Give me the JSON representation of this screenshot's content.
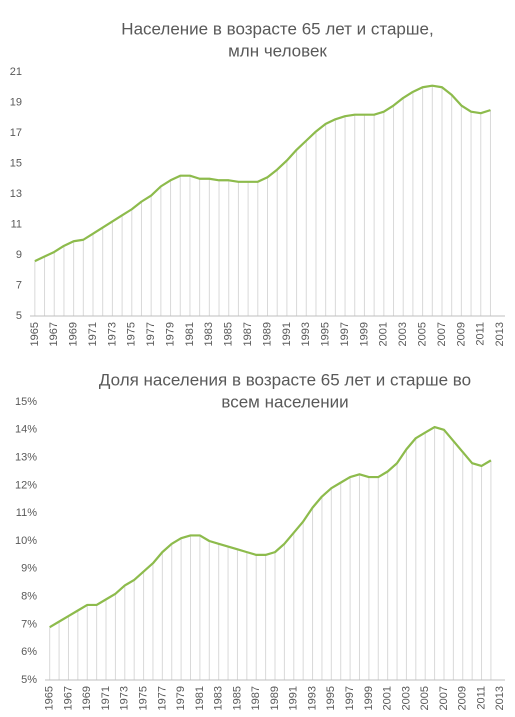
{
  "chart_data": [
    {
      "type": "line",
      "title": [
        "Население в возрасте 65 лет и старше,",
        "млн человек"
      ],
      "categories": [
        "1965",
        null,
        "1967",
        null,
        "1969",
        null,
        "1971",
        null,
        "1973",
        null,
        "1975",
        null,
        "1977",
        null,
        "1979",
        null,
        "1981",
        null,
        "1983",
        null,
        "1985",
        null,
        "1987",
        null,
        "1989",
        null,
        "1991",
        null,
        "1993",
        null,
        "1995",
        null,
        "1997",
        null,
        "1999",
        null,
        "2001",
        null,
        "2003",
        null,
        "2005",
        null,
        "2007",
        null,
        "2009",
        null,
        "2011",
        null,
        "2013"
      ],
      "series": [
        {
          "color": "#8dbb4c",
          "values": [
            8.6,
            8.9,
            9.2,
            9.6,
            9.9,
            10.0,
            10.4,
            10.8,
            11.2,
            11.6,
            12.0,
            12.5,
            12.9,
            13.5,
            13.9,
            14.2,
            14.2,
            14.0,
            14.0,
            13.9,
            13.9,
            13.8,
            13.8,
            13.8,
            14.1,
            14.6,
            15.2,
            15.9,
            16.5,
            17.1,
            17.6,
            17.9,
            18.1,
            18.2,
            18.2,
            18.2,
            18.4,
            18.8,
            19.3,
            19.7,
            20.0,
            20.1,
            20.0,
            19.5,
            18.8,
            18.4,
            18.3,
            18.5,
            null
          ]
        }
      ],
      "ylim": [
        5,
        21
      ],
      "yticks": [
        5,
        7,
        9,
        11,
        13,
        15,
        17,
        19,
        21
      ],
      "drop_lines": true
    },
    {
      "type": "line",
      "title": [
        "Доля населения  в возрасте  65 лет и старше  во",
        "всем населении"
      ],
      "categories": [
        "1965",
        null,
        "1967",
        null,
        "1969",
        null,
        "1971",
        null,
        "1973",
        null,
        "1975",
        null,
        "1977",
        null,
        "1979",
        null,
        "1981",
        null,
        "1983",
        null,
        "1985",
        null,
        "1987",
        null,
        "1989",
        null,
        "1991",
        null,
        "1993",
        null,
        "1995",
        null,
        "1997",
        null,
        "1999",
        null,
        "2001",
        null,
        "2003",
        null,
        "2005",
        null,
        "2007",
        null,
        "2009",
        null,
        "2011",
        null,
        "2013"
      ],
      "series": [
        {
          "color": "#8dbb4c",
          "values": [
            6.9,
            7.1,
            7.3,
            7.5,
            7.7,
            7.7,
            7.9,
            8.1,
            8.4,
            8.6,
            8.9,
            9.2,
            9.6,
            9.9,
            10.1,
            10.2,
            10.2,
            10.0,
            9.9,
            9.8,
            9.7,
            9.6,
            9.5,
            9.5,
            9.6,
            9.9,
            10.3,
            10.7,
            11.2,
            11.6,
            11.9,
            12.1,
            12.3,
            12.4,
            12.3,
            12.3,
            12.5,
            12.8,
            13.3,
            13.7,
            13.9,
            14.1,
            14.0,
            13.6,
            13.2,
            12.8,
            12.7,
            12.9,
            null
          ]
        }
      ],
      "ylim": [
        5,
        15
      ],
      "yticks": [
        {
          "value": 5,
          "label": "5%"
        },
        {
          "value": 6,
          "label": "6%"
        },
        {
          "value": 7,
          "label": "7%"
        },
        {
          "value": 8,
          "label": "8%"
        },
        {
          "value": 9,
          "label": "9%"
        },
        {
          "value": 10,
          "label": "10%"
        },
        {
          "value": 11,
          "label": "11%"
        },
        {
          "value": 12,
          "label": "12%"
        },
        {
          "value": 13,
          "label": "13%"
        },
        {
          "value": 14,
          "label": "14%"
        },
        {
          "value": 15,
          "label": "15%"
        }
      ],
      "drop_lines": true
    }
  ]
}
